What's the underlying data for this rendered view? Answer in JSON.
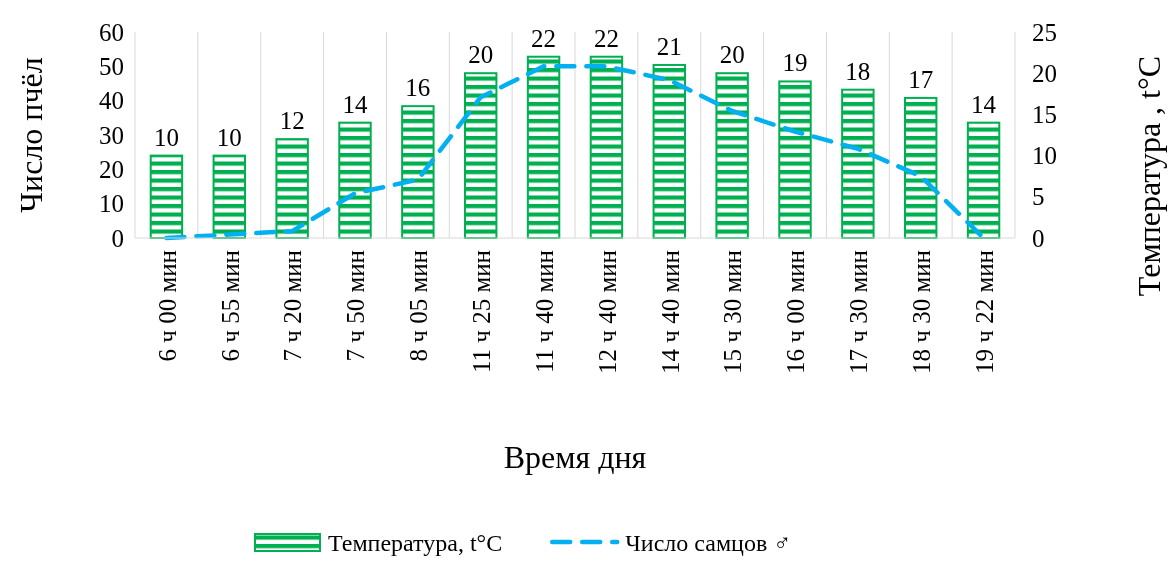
{
  "chart_data": {
    "type": "bar",
    "xlabel": "Время дня",
    "ylabel": "Число пчёл",
    "y2label": "Температура , t°C",
    "categories": [
      "6 ч 00 мин",
      "6 ч 55 мин",
      "7 ч 20 мин",
      "7 ч 50 мин",
      "8 ч 05 мин",
      "11 ч 25 мин",
      "11 ч 40 мин",
      "12 ч 40 мин",
      "14 ч 40 мин",
      "15 ч 30 мин",
      "16 ч 00 мин",
      "17 ч 30 мин",
      "18 ч 30 мин",
      "19 ч 22 мин"
    ],
    "series": [
      {
        "name": "Температура, t°C",
        "axis": "y2",
        "color": "#00b050",
        "values": [
          10,
          10,
          12,
          14,
          16,
          20,
          22,
          22,
          21,
          20,
          19,
          18,
          17,
          14
        ],
        "value_labels": [
          "10",
          "10",
          "12",
          "14",
          "16",
          "20",
          "22",
          "22",
          "21",
          "20",
          "19",
          "18",
          "17",
          "14"
        ]
      },
      {
        "name": "Число самцов ♂",
        "type": "line",
        "axis": "y",
        "color": "#00b0f0",
        "line_style": "dashed",
        "values": [
          0,
          1,
          2,
          13,
          17,
          41,
          50,
          50,
          46,
          37,
          31,
          26,
          18,
          0
        ]
      }
    ],
    "ylim": [
      0,
      60
    ],
    "yticks": [
      0,
      10,
      20,
      30,
      40,
      50,
      60
    ],
    "y2lim": [
      0,
      25
    ],
    "y2ticks": [
      0,
      5,
      10,
      15,
      20,
      25
    ],
    "grid": "x",
    "legend": "bottom"
  }
}
